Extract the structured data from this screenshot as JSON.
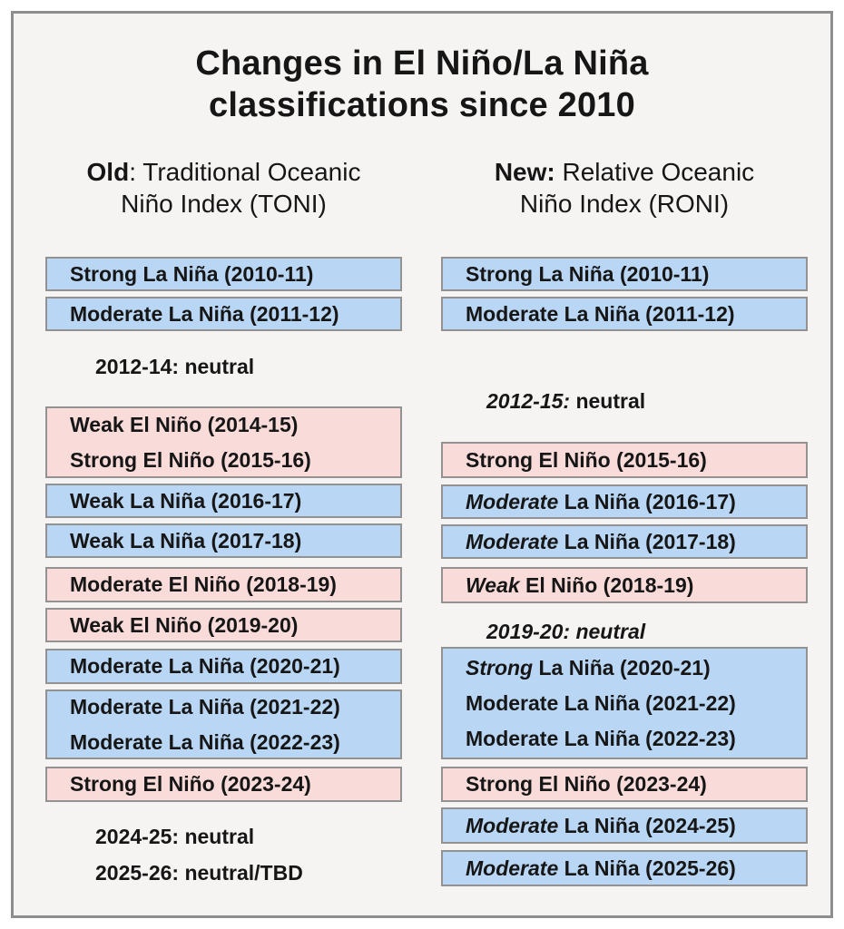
{
  "title": {
    "lines": [
      "Changes in El Niño/La Niña",
      "classifications since 2010"
    ]
  },
  "colors": {
    "la_nina_fill": "#b9d7f4",
    "el_nino_fill": "#f9dcda",
    "box_border": "#929292",
    "frame_border": "#8e8e8e",
    "canvas": "#f6f4f3",
    "ink": "#161616"
  },
  "columns": [
    {
      "id": "old",
      "heading": {
        "line1_bold": "Old",
        "line1_rest": ": Traditional Oceanic",
        "line2": "Niño Index (TONI)"
      },
      "items": [
        {
          "kind": "box",
          "variant": "la-nina",
          "lines": [
            [
              {
                "t": "Strong La Niña (2010-11)"
              }
            ]
          ]
        },
        {
          "kind": "box",
          "variant": "la-nina",
          "lines": [
            [
              {
                "t": "Moderate La Niña (2011-12)"
              }
            ]
          ]
        },
        {
          "kind": "text",
          "lines": [
            [
              {
                "t": "2012-14: neutral"
              }
            ]
          ]
        },
        {
          "kind": "box",
          "variant": "el-nino",
          "lines": [
            [
              {
                "t": "Weak El Niño (2014-15)"
              }
            ],
            [
              {
                "t": "Strong El Niño (2015-16)"
              }
            ]
          ]
        },
        {
          "kind": "box",
          "variant": "la-nina",
          "lines": [
            [
              {
                "t": "Weak La Niña (2016-17)"
              }
            ]
          ]
        },
        {
          "kind": "box",
          "variant": "la-nina",
          "lines": [
            [
              {
                "t": "Weak La Niña (2017-18)"
              }
            ]
          ]
        },
        {
          "kind": "box",
          "variant": "el-nino",
          "lines": [
            [
              {
                "t": "Moderate El Niño (2018-19)"
              }
            ]
          ]
        },
        {
          "kind": "box",
          "variant": "el-nino",
          "lines": [
            [
              {
                "t": "Weak El Niño (2019-20)"
              }
            ]
          ]
        },
        {
          "kind": "box",
          "variant": "la-nina",
          "lines": [
            [
              {
                "t": "Moderate La Niña (2020-21)"
              }
            ]
          ]
        },
        {
          "kind": "box",
          "variant": "la-nina",
          "lines": [
            [
              {
                "t": "Moderate La Niña (2021-22)"
              }
            ],
            [
              {
                "t": "Moderate La Niña (2022-23)"
              }
            ]
          ]
        },
        {
          "kind": "box",
          "variant": "el-nino",
          "lines": [
            [
              {
                "t": "Strong El Niño (2023-24)"
              }
            ]
          ]
        },
        {
          "kind": "text",
          "lines": [
            [
              {
                "t": "2024-25: neutral"
              }
            ]
          ]
        },
        {
          "kind": "text",
          "lines": [
            [
              {
                "t": "2025-26: neutral/TBD"
              }
            ]
          ]
        }
      ]
    },
    {
      "id": "new",
      "heading": {
        "line1_bold": "New:",
        "line1_rest": " Relative Oceanic",
        "line2": "Niño Index (RONI)"
      },
      "items": [
        {
          "kind": "box",
          "variant": "la-nina",
          "lines": [
            [
              {
                "t": "Strong La Niña (2010-11)"
              }
            ]
          ]
        },
        {
          "kind": "box",
          "variant": "la-nina",
          "lines": [
            [
              {
                "t": "Moderate La Niña (2011-12)"
              }
            ]
          ]
        },
        {
          "kind": "text",
          "lines": [
            [
              {
                "t": "2012-15:",
                "i": true
              },
              {
                "t": " neutral"
              }
            ]
          ]
        },
        {
          "kind": "box",
          "variant": "el-nino",
          "lines": [
            [
              {
                "t": "Strong El Niño (2015-16)"
              }
            ]
          ]
        },
        {
          "kind": "box",
          "variant": "la-nina",
          "lines": [
            [
              {
                "t": "Moderate",
                "i": true
              },
              {
                "t": " La Niña (2016-17)"
              }
            ]
          ]
        },
        {
          "kind": "box",
          "variant": "la-nina",
          "lines": [
            [
              {
                "t": "Moderate",
                "i": true
              },
              {
                "t": " La Niña (2017-18)"
              }
            ]
          ]
        },
        {
          "kind": "box",
          "variant": "el-nino",
          "lines": [
            [
              {
                "t": "Weak",
                "i": true
              },
              {
                "t": " El Niño (2018-19)"
              }
            ]
          ]
        },
        {
          "kind": "text",
          "lines": [
            [
              {
                "t": "2019-20: neutral",
                "i": true
              }
            ]
          ]
        },
        {
          "kind": "box",
          "variant": "la-nina",
          "lines": [
            [
              {
                "t": "Strong",
                "i": true
              },
              {
                "t": " La Niña (2020-21)"
              }
            ],
            [
              {
                "t": "Moderate La Niña (2021-22)"
              }
            ],
            [
              {
                "t": "Moderate La Niña (2022-23)"
              }
            ]
          ]
        },
        {
          "kind": "box",
          "variant": "el-nino",
          "lines": [
            [
              {
                "t": "Strong El Niño (2023-24)"
              }
            ]
          ]
        },
        {
          "kind": "box",
          "variant": "la-nina",
          "lines": [
            [
              {
                "t": "Moderate",
                "i": true
              },
              {
                "t": " La Niña (2024-25)"
              }
            ]
          ]
        },
        {
          "kind": "box",
          "variant": "la-nina",
          "lines": [
            [
              {
                "t": "Moderate",
                "i": true
              },
              {
                "t": " La Niña (2025-26)"
              }
            ]
          ]
        }
      ]
    }
  ]
}
